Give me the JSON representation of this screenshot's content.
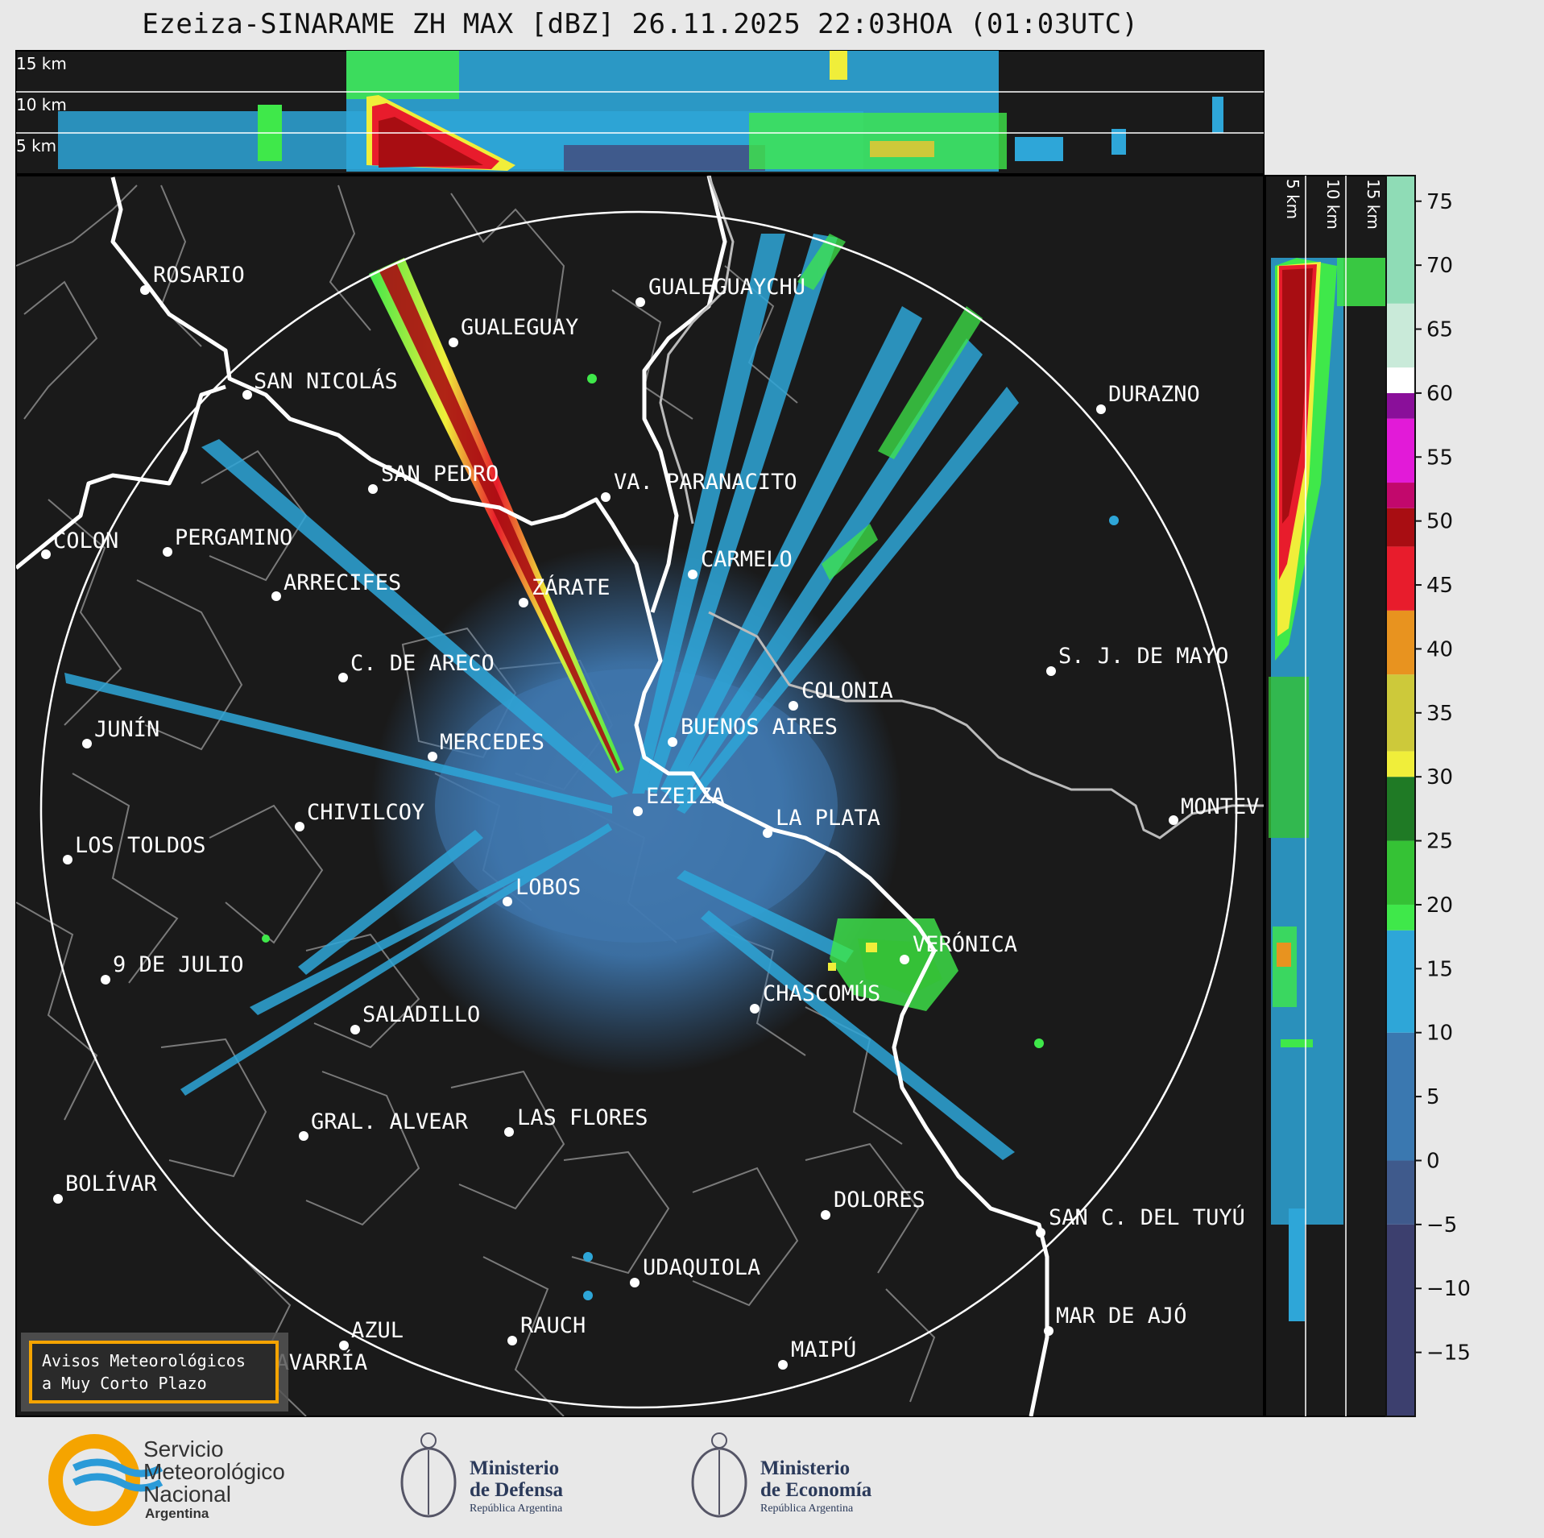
{
  "title": "Ezeiza-SINARAME ZH MAX [dBZ] 26.11.2025 22:03HOA (01:03UTC)",
  "top_panel_labels": [
    "15 km",
    "10 km",
    "5 km"
  ],
  "side_panel_labels": [
    "5 km",
    "10 km",
    "15 km"
  ],
  "colorbar": {
    "ticks": [
      "75",
      "70",
      "65",
      "60",
      "55",
      "50",
      "45",
      "40",
      "35",
      "30",
      "25",
      "20",
      "15",
      "10",
      "5",
      "0",
      "−5",
      "−10",
      "−15"
    ],
    "range": [
      -20,
      77
    ],
    "bands": [
      {
        "from": -20,
        "to": -5,
        "color": "#3c3f6e"
      },
      {
        "from": -5,
        "to": 0,
        "color": "#3f5a8c"
      },
      {
        "from": 0,
        "to": 10,
        "color": "#3a78b0"
      },
      {
        "from": 10,
        "to": 18,
        "color": "#2ea6d8"
      },
      {
        "from": 18,
        "to": 20,
        "color": "#3fe84a"
      },
      {
        "from": 20,
        "to": 25,
        "color": "#35c235"
      },
      {
        "from": 25,
        "to": 30,
        "color": "#1f7a25"
      },
      {
        "from": 30,
        "to": 32,
        "color": "#f0ee3a"
      },
      {
        "from": 32,
        "to": 38,
        "color": "#cdc93a"
      },
      {
        "from": 38,
        "to": 43,
        "color": "#e8931f"
      },
      {
        "from": 43,
        "to": 48,
        "color": "#e81c2c"
      },
      {
        "from": 48,
        "to": 51,
        "color": "#a80d12"
      },
      {
        "from": 51,
        "to": 53,
        "color": "#c2086c"
      },
      {
        "from": 53,
        "to": 58,
        "color": "#e21ad8"
      },
      {
        "from": 58,
        "to": 60,
        "color": "#8a0f9a"
      },
      {
        "from": 60,
        "to": 62,
        "color": "#ffffff"
      },
      {
        "from": 62,
        "to": 67,
        "color": "#c9ead9"
      },
      {
        "from": 67,
        "to": 77,
        "color": "#8fdcb6"
      }
    ]
  },
  "cities": [
    "ROSARIO",
    "GUALEGUAYCHÚ",
    "GUALEGUAY",
    "SAN NICOLÁS",
    "DURAZNO",
    "SAN PEDRO",
    "VA. PARANACITO",
    "COLON",
    "PERGAMINO",
    "CARMELO",
    "ARRECIFES",
    "ZÁRATE",
    "S. J. DE MAYO",
    "C. DE ARECO",
    "COLONIA",
    "JUNÍN",
    "BUENOS AIRES",
    "MERCEDES",
    "EZEIZA",
    "CHIVILCOY",
    "MONTEV",
    "LA PLATA",
    "LOS TOLDOS",
    "LOBOS",
    "VERÓNICA",
    "9 DE JULIO",
    "CHASCOMÚS",
    "SALADILLO",
    "GRAL. ALVEAR",
    "LAS FLORES",
    "BOLÍVAR",
    "DOLORES",
    "SAN C. DEL TUYÚ",
    "UDAQUIOLA",
    "MAR DE AJÓ",
    "AZUL",
    "RAUCH",
    "MAIPÚ",
    "OLAVARRÍA"
  ],
  "notice": {
    "line1": "Avisos Meteorológicos",
    "line2": "a Muy Corto Plazo"
  },
  "logos": {
    "smn": {
      "line1": "Servicio",
      "line2": "Meteorológico",
      "line3": "Nacional",
      "line4": "Argentina"
    },
    "defensa": {
      "line1": "Ministerio",
      "line2": "de Defensa",
      "line3": "República Argentina"
    },
    "economia": {
      "line1": "Ministerio",
      "line2": "de Economía",
      "line3": "República Argentina"
    }
  }
}
